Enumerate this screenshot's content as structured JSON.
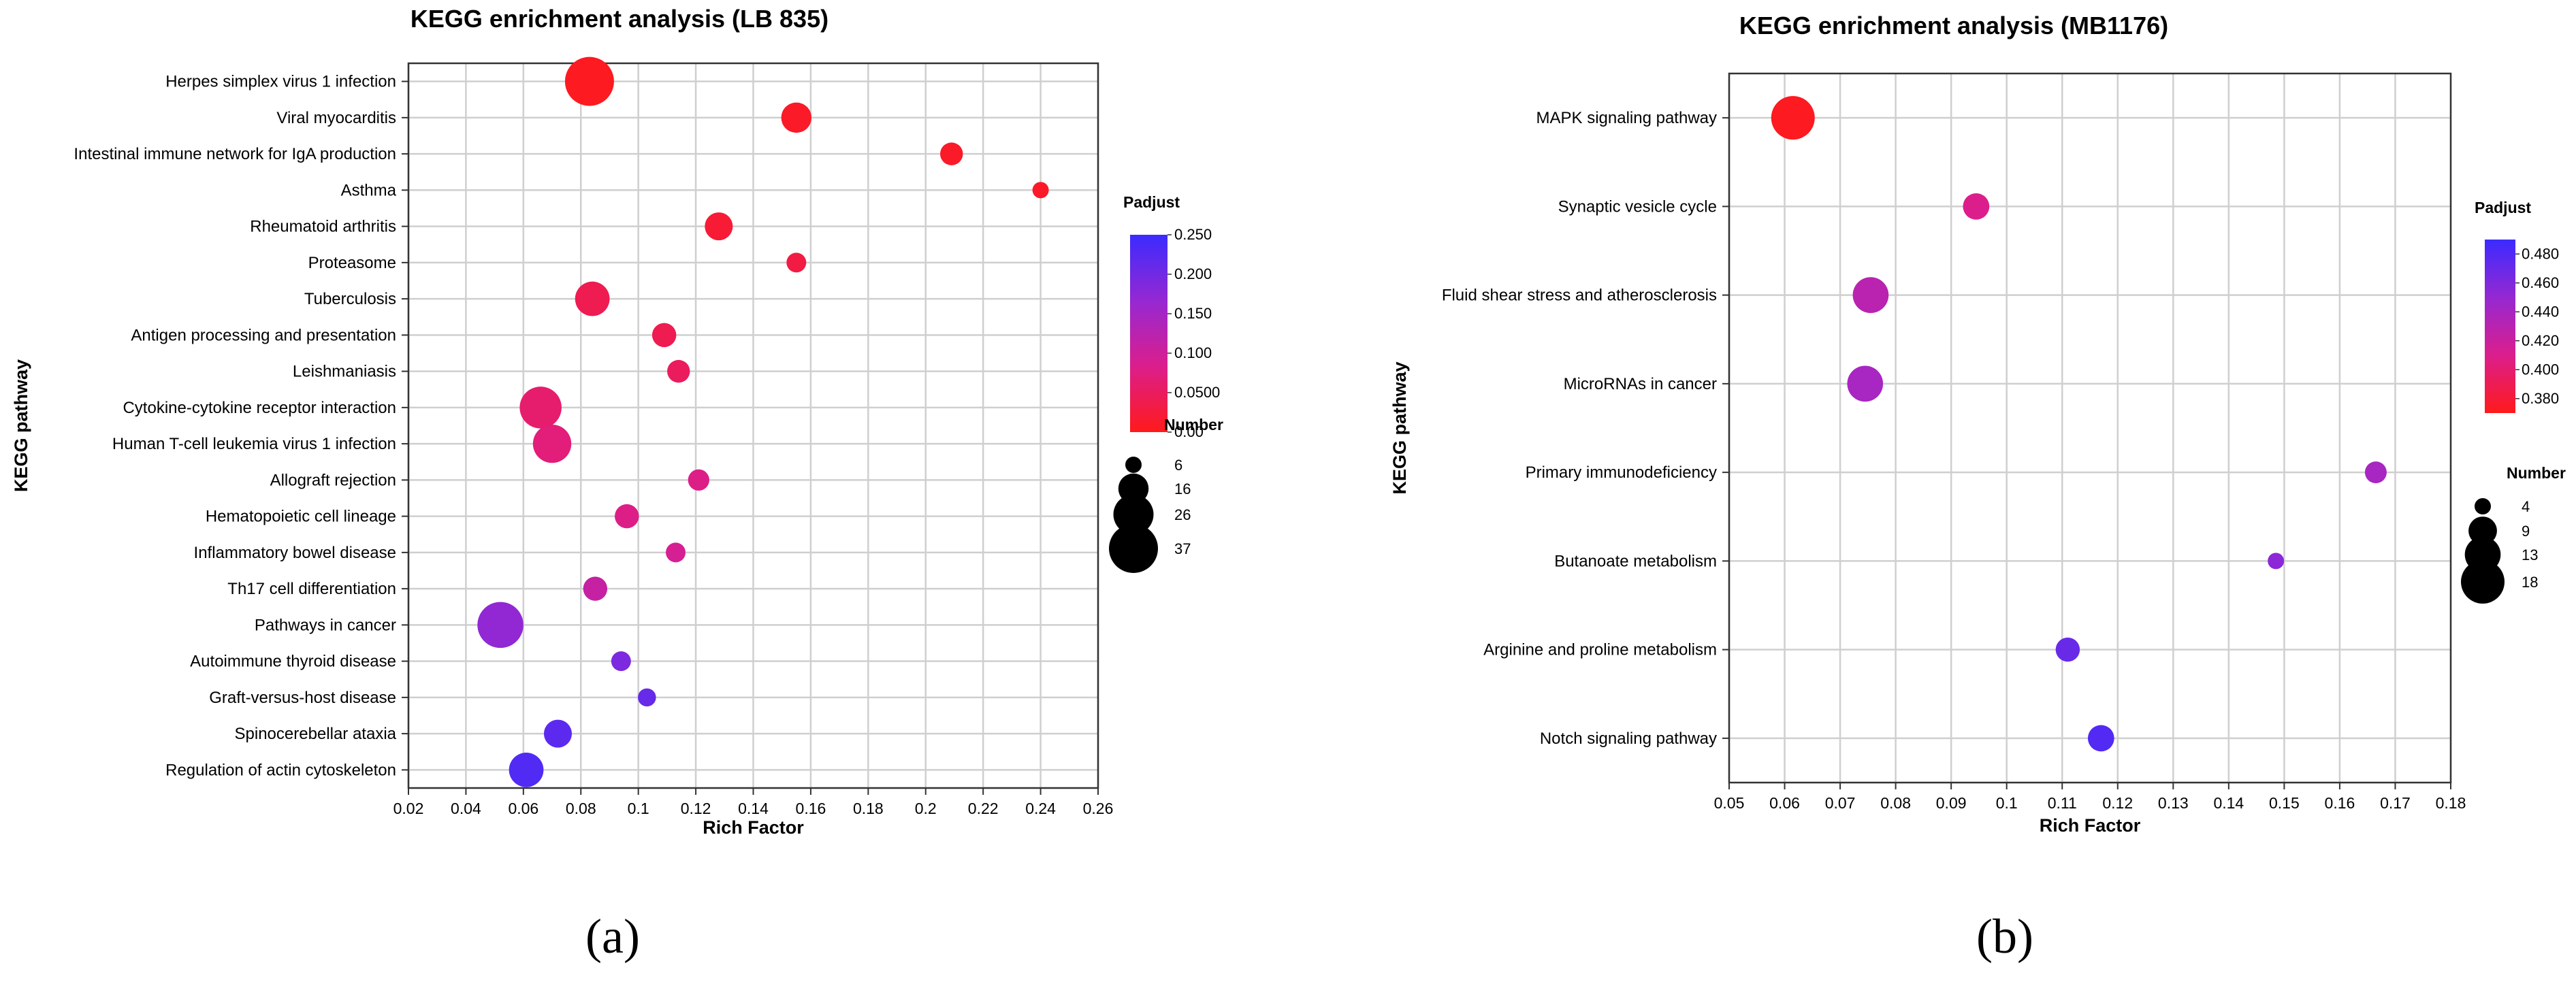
{
  "chart_data": [
    {
      "type": "scatter",
      "title": "KEGG enrichment analysis (LB 835)",
      "xlabel": "Rich Factor",
      "ylabel": "KEGG pathway",
      "xlim": [
        0.02,
        0.26
      ],
      "xticks": [
        "0.02",
        "0.04",
        "0.06",
        "0.08",
        "0.1",
        "0.12",
        "0.14",
        "0.16",
        "0.18",
        "0.2",
        "0.22",
        "0.24",
        "0.26"
      ],
      "grid": true,
      "panel_label": "(a)",
      "color_legend": {
        "title": "Padjust",
        "range": [
          0,
          0.25
        ],
        "ticks": [
          "0.00",
          "0.0500",
          "0.100",
          "0.150",
          "0.200",
          "0.250"
        ],
        "low_color": "#ff1a1a",
        "high_color": "#3b2bff"
      },
      "size_legend": {
        "title": "Number",
        "values": [
          6,
          16,
          26,
          37
        ]
      },
      "categories": [
        "Herpes simplex virus 1 infection",
        "Viral myocarditis",
        "Intestinal immune network for IgA production",
        "Asthma",
        "Rheumatoid arthritis",
        "Proteasome",
        "Tuberculosis",
        "Antigen processing and presentation",
        "Leishmaniasis",
        "Cytokine-cytokine receptor interaction",
        "Human T-cell leukemia virus 1 infection",
        "Allograft rejection",
        "Hematopoietic cell lineage",
        "Inflammatory bowel disease",
        "Th17 cell differentiation",
        "Pathways in cancer",
        "Autoimmune thyroid disease",
        "Graft-versus-host disease",
        "Spinocerebellar ataxia",
        "Regulation of actin cytoskeleton"
      ],
      "points": [
        {
          "x": 0.083,
          "number": 37,
          "padjust": 0.005
        },
        {
          "x": 0.155,
          "number": 16,
          "padjust": 0.01
        },
        {
          "x": 0.209,
          "number": 10,
          "padjust": 0.01
        },
        {
          "x": 0.24,
          "number": 6,
          "padjust": 0.01
        },
        {
          "x": 0.128,
          "number": 14,
          "padjust": 0.02
        },
        {
          "x": 0.155,
          "number": 8,
          "padjust": 0.03
        },
        {
          "x": 0.084,
          "number": 20,
          "padjust": 0.04
        },
        {
          "x": 0.109,
          "number": 11,
          "padjust": 0.04
        },
        {
          "x": 0.114,
          "number": 10,
          "padjust": 0.05
        },
        {
          "x": 0.066,
          "number": 28,
          "padjust": 0.06
        },
        {
          "x": 0.07,
          "number": 24,
          "padjust": 0.07
        },
        {
          "x": 0.121,
          "number": 9,
          "padjust": 0.08
        },
        {
          "x": 0.096,
          "number": 11,
          "padjust": 0.08
        },
        {
          "x": 0.113,
          "number": 8,
          "padjust": 0.09
        },
        {
          "x": 0.085,
          "number": 11,
          "padjust": 0.11
        },
        {
          "x": 0.052,
          "number": 33,
          "padjust": 0.17
        },
        {
          "x": 0.094,
          "number": 8,
          "padjust": 0.19
        },
        {
          "x": 0.103,
          "number": 7,
          "padjust": 0.21
        },
        {
          "x": 0.072,
          "number": 14,
          "padjust": 0.22
        },
        {
          "x": 0.061,
          "number": 20,
          "padjust": 0.23
        }
      ]
    },
    {
      "type": "scatter",
      "title": "KEGG enrichment analysis (MB1176)",
      "xlabel": "Rich Factor",
      "ylabel": "KEGG pathway",
      "xlim": [
        0.05,
        0.18
      ],
      "xticks": [
        "0.05",
        "0.06",
        "0.07",
        "0.08",
        "0.09",
        "0.1",
        "0.11",
        "0.12",
        "0.13",
        "0.14",
        "0.15",
        "0.16",
        "0.17",
        "0.18"
      ],
      "grid": true,
      "panel_label": "(b)",
      "color_legend": {
        "title": "Padjust",
        "range": [
          0.37,
          0.49
        ],
        "ticks": [
          "0.380",
          "0.400",
          "0.420",
          "0.440",
          "0.460",
          "0.480"
        ],
        "low_color": "#ff1a1a",
        "high_color": "#3b2bff"
      },
      "size_legend": {
        "title": "Number",
        "values": [
          4,
          9,
          13,
          18
        ]
      },
      "categories": [
        "MAPK signaling pathway",
        "Synaptic vesicle cycle",
        "Fluid shear stress and atherosclerosis",
        "MicroRNAs in cancer",
        "Primary immunodeficiency",
        "Butanoate metabolism",
        "Arginine and proline metabolism",
        "Notch signaling pathway"
      ],
      "points": [
        {
          "x": 0.0615,
          "number": 18,
          "padjust": 0.372
        },
        {
          "x": 0.0945,
          "number": 8,
          "padjust": 0.41
        },
        {
          "x": 0.0755,
          "number": 13,
          "padjust": 0.43
        },
        {
          "x": 0.0745,
          "number": 13,
          "padjust": 0.44
        },
        {
          "x": 0.1665,
          "number": 6,
          "padjust": 0.44
        },
        {
          "x": 0.1485,
          "number": 4,
          "padjust": 0.455
        },
        {
          "x": 0.111,
          "number": 7,
          "padjust": 0.47
        },
        {
          "x": 0.117,
          "number": 8,
          "padjust": 0.48
        }
      ]
    }
  ]
}
